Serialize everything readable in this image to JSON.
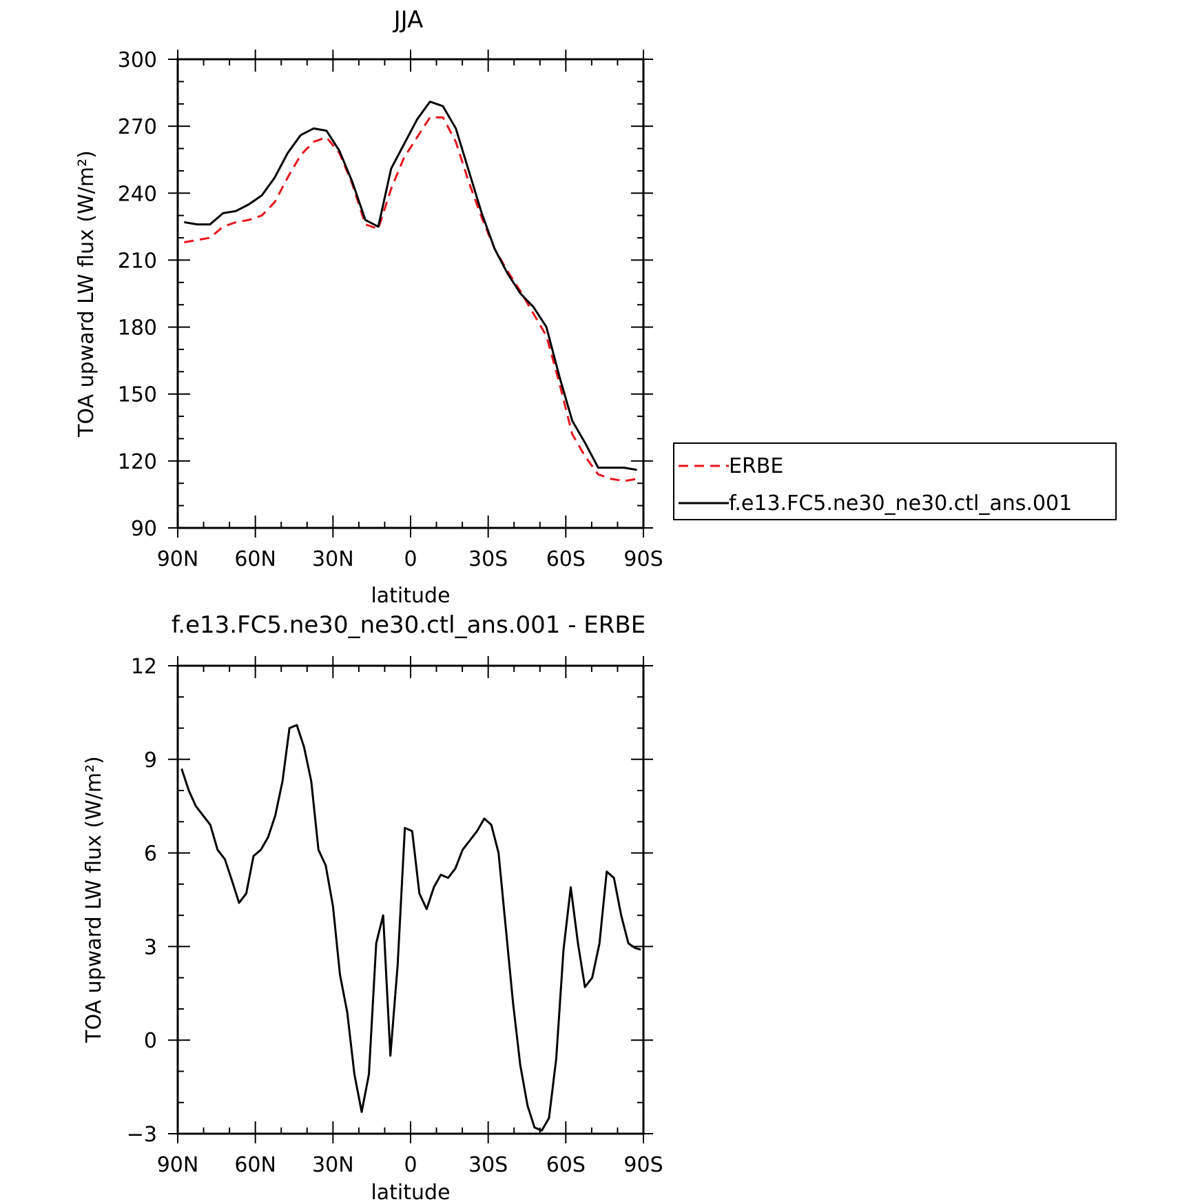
{
  "chart_data": [
    {
      "type": "line",
      "title": "JJA",
      "xlabel": "latitude",
      "ylabel": "TOA upward LW flux (W/m²)",
      "xlim": [
        90,
        -90
      ],
      "ylim": [
        90,
        300
      ],
      "xticks": [
        90,
        60,
        30,
        0,
        -30,
        -60,
        -90
      ],
      "xtick_labels": [
        "90N",
        "60N",
        "30N",
        "0",
        "30S",
        "60S",
        "90S"
      ],
      "yticks": [
        90,
        120,
        150,
        180,
        210,
        240,
        270,
        300
      ],
      "ytick_labels": [
        "90",
        "120",
        "150",
        "180",
        "210",
        "240",
        "270",
        "300"
      ],
      "legend": "right",
      "x": [
        87.5,
        82.5,
        77.5,
        72.5,
        67.5,
        62.5,
        57.5,
        52.5,
        47.5,
        42.5,
        37.5,
        32.5,
        27.5,
        22.5,
        17.5,
        12.5,
        7.5,
        2.5,
        -2.5,
        -7.5,
        -12.5,
        -17.5,
        -22.5,
        -27.5,
        -32.5,
        -37.5,
        -42.5,
        -47.5,
        -52.5,
        -57.5,
        -62.5,
        -67.5,
        -72.5,
        -77.5,
        -82.5,
        -87.5
      ],
      "series": [
        {
          "name": "ERBE",
          "color": "#e8141c",
          "dash": true,
          "values": [
            218,
            219,
            220,
            225,
            227,
            228,
            230,
            236,
            247,
            257,
            263,
            265,
            258,
            244,
            226,
            224,
            242,
            256,
            265,
            274,
            274,
            263,
            245,
            229,
            215,
            205,
            196,
            186,
            176,
            155,
            132,
            122,
            114,
            112,
            111,
            112
          ]
        },
        {
          "name": "f.e13.FC5.ne30_ne30.ctl_ans.001",
          "color": "#000000",
          "dash": false,
          "values": [
            227,
            226,
            226,
            231,
            232,
            235,
            239,
            247,
            258,
            266,
            269,
            268,
            259,
            245,
            228,
            225,
            251,
            262,
            273,
            281,
            279,
            269,
            250,
            231,
            215,
            204,
            195,
            189,
            180,
            158,
            138,
            128,
            117,
            117,
            117,
            116
          ]
        }
      ]
    },
    {
      "type": "line",
      "title": "f.e13.FC5.ne30_ne30.ctl_ans.001 - ERBE",
      "xlabel": "latitude",
      "ylabel": "TOA upward LW flux (W/m²)",
      "xlim": [
        90,
        -90
      ],
      "ylim": [
        -3,
        12
      ],
      "xticks": [
        90,
        60,
        30,
        0,
        -30,
        -60,
        -90
      ],
      "xtick_labels": [
        "90N",
        "60N",
        "30N",
        "0",
        "30S",
        "60S",
        "90S"
      ],
      "yticks": [
        -3,
        0,
        3,
        6,
        9,
        12
      ],
      "ytick_labels": [
        "−3",
        "0",
        "3",
        "6",
        "9",
        "12"
      ],
      "x": [
        88.5,
        85.7,
        83,
        80.2,
        77.4,
        74.6,
        71.8,
        69,
        66.3,
        63.5,
        60.7,
        57.9,
        55.1,
        52.3,
        49.5,
        46.8,
        44,
        41.2,
        38.4,
        35.6,
        32.8,
        30,
        27.3,
        24.5,
        21.7,
        18.9,
        16.1,
        13.3,
        10.6,
        7.8,
        5,
        2.2,
        -0.6,
        -3.4,
        -6.2,
        -9,
        -11.7,
        -14.5,
        -17.3,
        -20.1,
        -22.9,
        -25.7,
        -28.5,
        -31.2,
        -34,
        -36.8,
        -39.6,
        -42.4,
        -45.2,
        -47.9,
        -50.7,
        -53.5,
        -56.3,
        -59.1,
        -61.9,
        -64.7,
        -67.4,
        -70.2,
        -73,
        -75.8,
        -78.6,
        -81.4,
        -84.2,
        -86.9,
        -89.0
      ],
      "series": [
        {
          "name": "",
          "color": "#000000",
          "dash": false,
          "values": [
            8.7,
            8.0,
            7.5,
            7.2,
            6.9,
            6.1,
            5.8,
            5.1,
            4.4,
            4.7,
            5.9,
            6.1,
            6.5,
            7.2,
            8.3,
            10.0,
            10.1,
            9.4,
            8.3,
            6.1,
            5.6,
            4.3,
            2.1,
            0.9,
            -1.1,
            -2.3,
            -1.1,
            3.1,
            4.0,
            -0.5,
            2.4,
            6.8,
            6.7,
            4.7,
            4.2,
            4.9,
            5.3,
            5.2,
            5.5,
            6.1,
            6.4,
            6.7,
            7.1,
            6.9,
            6.0,
            3.6,
            1.2,
            -0.8,
            -2.1,
            -2.8,
            -2.9,
            -2.5,
            -0.6,
            2.9,
            4.9,
            3.1,
            1.7,
            2.0,
            3.1,
            5.4,
            5.2,
            4.0,
            3.1,
            2.95,
            2.9
          ]
        }
      ]
    }
  ]
}
